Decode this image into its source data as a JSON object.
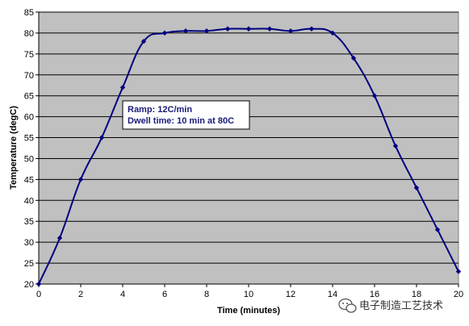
{
  "chart_data": {
    "type": "line",
    "title": "",
    "xlabel": "Time (minutes)",
    "ylabel": "Temperature (degC)",
    "xlim": [
      0,
      20
    ],
    "ylim": [
      20,
      85
    ],
    "xticks": [
      0,
      2,
      4,
      6,
      8,
      10,
      12,
      14,
      16,
      18,
      20
    ],
    "yticks": [
      20,
      25,
      30,
      35,
      40,
      45,
      50,
      55,
      60,
      65,
      70,
      75,
      80,
      85
    ],
    "grid": "horizontal",
    "legend": "none",
    "series": [
      {
        "x": [
          0,
          1,
          2,
          3,
          4,
          5,
          6,
          7,
          8,
          9,
          10,
          11,
          12,
          13,
          14,
          15,
          16,
          17,
          18,
          19,
          20
        ],
        "y": [
          20,
          31,
          45,
          55,
          67,
          78,
          80,
          80.5,
          80.5,
          81,
          81,
          81,
          80.5,
          81,
          80,
          74,
          65,
          53,
          43,
          33,
          23
        ]
      }
    ],
    "annotations": [
      "Ramp: 12C/min",
      "Dwell time: 10 min at 80C"
    ]
  },
  "colors": {
    "plot_background": "#c0c0c0",
    "series_line": "#000080",
    "grid": "#000000"
  },
  "watermark": {
    "icon": "wechat-icon",
    "text": "电子制造工艺技术"
  }
}
